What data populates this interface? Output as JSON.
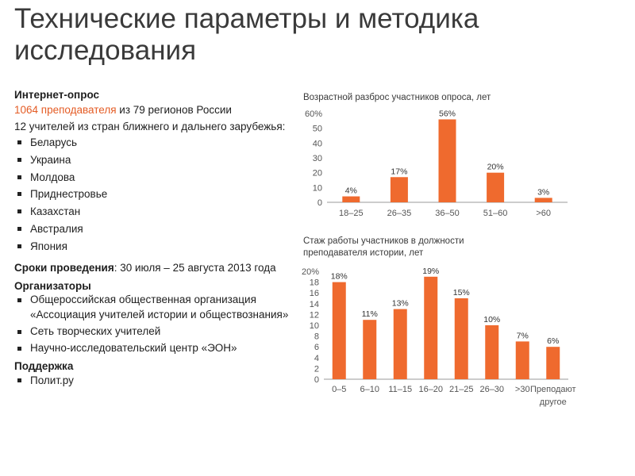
{
  "header": {
    "title": "Технические параметры и методика исследования"
  },
  "left": {
    "survey_heading": "Интернет-опрос",
    "teachers_highlight": "1064 преподавателя",
    "teachers_rest": " из 79 регионов России",
    "foreign_line": "12 учителей из стран ближнего и дальнего зарубежья:",
    "countries": [
      "Беларусь",
      "Украина",
      "Молдова",
      "Приднестровье",
      "Казахстан",
      "Австралия",
      "Япония"
    ],
    "period_label": "Сроки проведения",
    "period_value": ": 30 июля – 25 августа 2013 года",
    "organizers_heading": "Организаторы",
    "organizers": [
      "Общероссийская общественная организация «Ассоциация учителей истории и обществознания»",
      "Сеть творческих учителей",
      "Научно-исследовательский центр «ЭОН»"
    ],
    "support_heading": "Поддержка",
    "support": [
      "Полит.ру"
    ]
  },
  "chart_data": [
    {
      "type": "bar",
      "title": "Возрастной разброс участников опроса, лет",
      "categories": [
        "18–25",
        "26–35",
        "36–50",
        "51–60",
        ">60"
      ],
      "values": [
        4,
        17,
        56,
        20,
        3
      ],
      "data_labels": [
        "4%",
        "17%",
        "56%",
        "20%",
        "3%"
      ],
      "ylim": [
        0,
        60
      ],
      "yticks": [
        "0",
        "10",
        "20",
        "30",
        "40",
        "50",
        "60%"
      ],
      "grid": false,
      "color": "#ef6a2e"
    },
    {
      "type": "bar",
      "title": "Стаж работы участников в должности преподавателя истории, лет",
      "categories": [
        "0–5",
        "6–10",
        "11–15",
        "16–20",
        "21–25",
        "26–30",
        ">30",
        "Преподают другое"
      ],
      "values": [
        18,
        11,
        13,
        19,
        15,
        10,
        7,
        6
      ],
      "data_labels": [
        "18%",
        "11%",
        "13%",
        "19%",
        "15%",
        "10%",
        "7%",
        "6%"
      ],
      "ylim": [
        0,
        20
      ],
      "yticks": [
        "0",
        "2",
        "4",
        "6",
        "8",
        "10",
        "12",
        "14",
        "16",
        "18",
        "20%"
      ],
      "grid": false,
      "color": "#ef6a2e"
    }
  ]
}
